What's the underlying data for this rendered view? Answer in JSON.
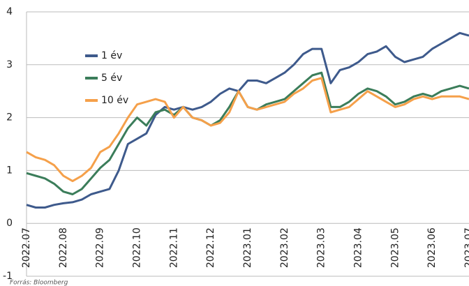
{
  "chart_data": {
    "type": "line",
    "categories": [
      "2022.07",
      null,
      null,
      null,
      "2022.08",
      null,
      null,
      null,
      "2022.09",
      null,
      null,
      null,
      "2022.10",
      null,
      null,
      null,
      "2022.11",
      null,
      null,
      null,
      "2022.12",
      null,
      null,
      null,
      "2023.01",
      null,
      null,
      null,
      "2023.02",
      null,
      null,
      null,
      "2023.03",
      null,
      null,
      null,
      "2023.04",
      null,
      null,
      null,
      "2023.05",
      null,
      null,
      null,
      "2023.06",
      null,
      null,
      null,
      "2023.07"
    ],
    "series": [
      {
        "name": "1 év",
        "color": "#3e5a8c",
        "values": [
          0.35,
          0.3,
          0.3,
          0.35,
          0.38,
          0.4,
          0.45,
          0.55,
          0.6,
          0.65,
          1.0,
          1.5,
          1.6,
          1.7,
          2.05,
          2.2,
          2.15,
          2.2,
          2.15,
          2.2,
          2.3,
          2.45,
          2.55,
          2.5,
          2.7,
          2.7,
          2.65,
          2.75,
          2.85,
          3.0,
          3.2,
          3.3,
          3.3,
          2.65,
          2.9,
          2.95,
          3.05,
          3.2,
          3.25,
          3.35,
          3.15,
          3.05,
          3.1,
          3.15,
          3.3,
          3.4,
          3.5,
          3.6,
          3.55
        ]
      },
      {
        "name": "5 év",
        "color": "#3b7d5a",
        "values": [
          0.95,
          0.9,
          0.85,
          0.75,
          0.6,
          0.55,
          0.65,
          0.85,
          1.05,
          1.2,
          1.5,
          1.8,
          2.0,
          1.85,
          2.1,
          2.15,
          2.05,
          2.2,
          2.0,
          1.95,
          1.85,
          1.95,
          2.2,
          2.5,
          2.2,
          2.15,
          2.25,
          2.3,
          2.35,
          2.5,
          2.65,
          2.8,
          2.85,
          2.2,
          2.2,
          2.3,
          2.45,
          2.55,
          2.5,
          2.4,
          2.25,
          2.3,
          2.4,
          2.45,
          2.4,
          2.5,
          2.55,
          2.6,
          2.55
        ]
      },
      {
        "name": "10 év",
        "color": "#f5a04a",
        "values": [
          1.35,
          1.25,
          1.2,
          1.1,
          0.9,
          0.8,
          0.9,
          1.05,
          1.35,
          1.45,
          1.7,
          2.0,
          2.25,
          2.3,
          2.35,
          2.3,
          2.0,
          2.2,
          2.0,
          1.95,
          1.85,
          1.9,
          2.1,
          2.5,
          2.2,
          2.15,
          2.2,
          2.25,
          2.3,
          2.45,
          2.55,
          2.7,
          2.75,
          2.1,
          2.15,
          2.2,
          2.35,
          2.5,
          2.4,
          2.3,
          2.2,
          2.25,
          2.35,
          2.4,
          2.35,
          2.4,
          2.4,
          2.4,
          2.35
        ]
      }
    ],
    "ylim": [
      -1,
      4
    ],
    "yticks": [
      -1,
      0,
      1,
      2,
      3,
      4
    ],
    "grid": true,
    "source": "Forrás: Bloomberg"
  }
}
